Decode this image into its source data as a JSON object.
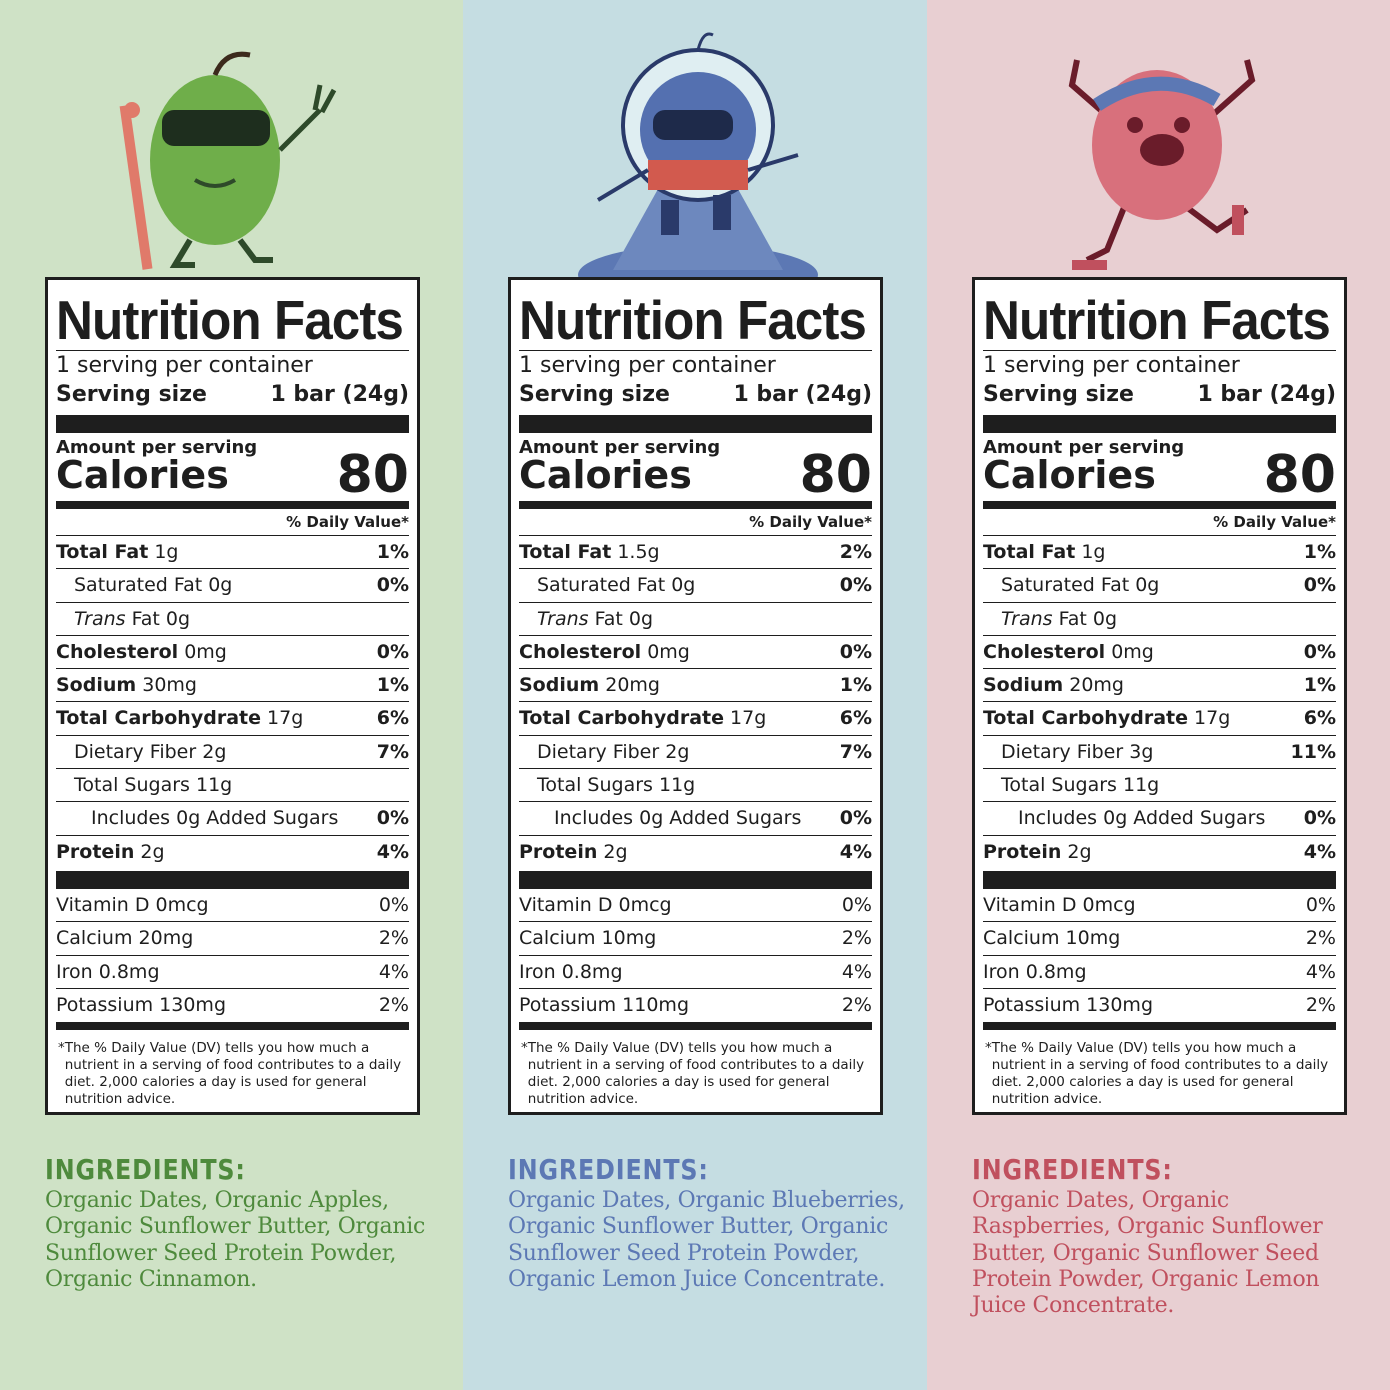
{
  "colors": {
    "green_bg": "#cfe2c6",
    "blue_bg": "#c5dde2",
    "pink_bg": "#e8cfd2",
    "green": "#4e8a3c",
    "blue": "#5c78b4",
    "pink": "#c0505e"
  },
  "panels": [
    {
      "mascot": "apple-character-icon",
      "bg": "#cfe2c6",
      "accent": "#4e8a3c",
      "title": "Nutrition Facts",
      "servings": "1 serving per container",
      "serving_size_label": "Serving size",
      "serving_size": "1 bar (24g)",
      "amount_label": "Amount per serving",
      "calories_label": "Calories",
      "calories": "80",
      "dv_label": "% Daily Value*",
      "rows": [
        {
          "name": "Total Fat",
          "amount": "1g",
          "pct": "1%"
        },
        {
          "name": "Saturated Fat",
          "amount": "0g",
          "pct": "0%"
        },
        {
          "name": "Trans",
          "name2": "Fat",
          "amount": "0g",
          "pct": ""
        },
        {
          "name": "Cholesterol",
          "amount": "0mg",
          "pct": "0%"
        },
        {
          "name": "Sodium",
          "amount": "30mg",
          "pct": "1%"
        },
        {
          "name": "Total Carbohydrate",
          "amount": "17g",
          "pct": "6%"
        },
        {
          "name": "Dietary Fiber",
          "amount": "2g",
          "pct": "7%"
        },
        {
          "name": "Total Sugars",
          "amount": "11g",
          "pct": ""
        },
        {
          "name": "Includes",
          "amount": "0g Added Sugars",
          "pct": "0%"
        },
        {
          "name": "Protein",
          "amount": "2g",
          "pct": "4%"
        }
      ],
      "vitamins": [
        {
          "name": "Vitamin D",
          "amount": "0mcg",
          "pct": "0%"
        },
        {
          "name": "Calcium",
          "amount": "20mg",
          "pct": "2%"
        },
        {
          "name": "Iron",
          "amount": "0.8mg",
          "pct": "4%"
        },
        {
          "name": "Potassium",
          "amount": "130mg",
          "pct": "2%"
        }
      ],
      "footnote_star": "*",
      "footnote": "The % Daily Value (DV) tells you how much a nutrient in a serving of food contributes to a daily diet. 2,000 calories a day is used for general nutrition advice.",
      "ingredients_heading": "INGREDIENTS:",
      "ingredients": "Organic Dates, Organic Apples, Organic Sunflower Butter, Organic Sunflower Seed Protein Powder, Organic Cinnamon."
    },
    {
      "mascot": "blueberry-astronaut-icon",
      "bg": "#c5dde2",
      "accent": "#5c78b4",
      "title": "Nutrition Facts",
      "servings": "1 serving per container",
      "serving_size_label": "Serving size",
      "serving_size": "1 bar (24g)",
      "amount_label": "Amount per serving",
      "calories_label": "Calories",
      "calories": "80",
      "dv_label": "% Daily Value*",
      "rows": [
        {
          "name": "Total Fat",
          "amount": "1.5g",
          "pct": "2%"
        },
        {
          "name": "Saturated Fat",
          "amount": "0g",
          "pct": "0%"
        },
        {
          "name": "Trans",
          "name2": "Fat",
          "amount": "0g",
          "pct": ""
        },
        {
          "name": "Cholesterol",
          "amount": "0mg",
          "pct": "0%"
        },
        {
          "name": "Sodium",
          "amount": "20mg",
          "pct": "1%"
        },
        {
          "name": "Total Carbohydrate",
          "amount": "17g",
          "pct": "6%"
        },
        {
          "name": "Dietary Fiber",
          "amount": "2g",
          "pct": "7%"
        },
        {
          "name": "Total Sugars",
          "amount": "11g",
          "pct": ""
        },
        {
          "name": "Includes",
          "amount": "0g Added Sugars",
          "pct": "0%"
        },
        {
          "name": "Protein",
          "amount": "2g",
          "pct": "4%"
        }
      ],
      "vitamins": [
        {
          "name": "Vitamin D",
          "amount": "0mcg",
          "pct": "0%"
        },
        {
          "name": "Calcium",
          "amount": "10mg",
          "pct": "2%"
        },
        {
          "name": "Iron",
          "amount": "0.8mg",
          "pct": "4%"
        },
        {
          "name": "Potassium",
          "amount": "110mg",
          "pct": "2%"
        }
      ],
      "footnote_star": "*",
      "footnote": "The % Daily Value (DV) tells you how much a nutrient in a serving of food contributes to a daily diet. 2,000 calories a day is used for general nutrition advice.",
      "ingredients_heading": "INGREDIENTS:",
      "ingredients": "Organic Dates, Organic Blueberries, Organic Sunflower Butter, Organic Sunflower Seed Protein Powder, Organic Lemon Juice Concentrate."
    },
    {
      "mascot": "raspberry-athlete-icon",
      "bg": "#e8cfd2",
      "accent": "#c0505e",
      "title": "Nutrition Facts",
      "servings": "1 serving per container",
      "serving_size_label": "Serving size",
      "serving_size": "1 bar (24g)",
      "amount_label": "Amount per serving",
      "calories_label": "Calories",
      "calories": "80",
      "dv_label": "% Daily Value*",
      "rows": [
        {
          "name": "Total Fat",
          "amount": "1g",
          "pct": "1%"
        },
        {
          "name": "Saturated Fat",
          "amount": "0g",
          "pct": "0%"
        },
        {
          "name": "Trans",
          "name2": "Fat",
          "amount": "0g",
          "pct": ""
        },
        {
          "name": "Cholesterol",
          "amount": "0mg",
          "pct": "0%"
        },
        {
          "name": "Sodium",
          "amount": "20mg",
          "pct": "1%"
        },
        {
          "name": "Total Carbohydrate",
          "amount": "17g",
          "pct": "6%"
        },
        {
          "name": "Dietary Fiber",
          "amount": "3g",
          "pct": "11%"
        },
        {
          "name": "Total Sugars",
          "amount": "11g",
          "pct": ""
        },
        {
          "name": "Includes",
          "amount": "0g Added Sugars",
          "pct": "0%"
        },
        {
          "name": "Protein",
          "amount": "2g",
          "pct": "4%"
        }
      ],
      "vitamins": [
        {
          "name": "Vitamin D",
          "amount": "0mcg",
          "pct": "0%"
        },
        {
          "name": "Calcium",
          "amount": "10mg",
          "pct": "2%"
        },
        {
          "name": "Iron",
          "amount": "0.8mg",
          "pct": "4%"
        },
        {
          "name": "Potassium",
          "amount": "130mg",
          "pct": "2%"
        }
      ],
      "footnote_star": "*",
      "footnote": "The % Daily Value (DV) tells you how much a nutrient in a serving of food contributes to a daily diet. 2,000 calories a day is used for general nutrition advice.",
      "ingredients_heading": "INGREDIENTS:",
      "ingredients": "Organic Dates, Organic Raspberries, Organic Sunflower Butter, Organic Sunflower Seed Protein Powder, Organic Lemon Juice Concentrate."
    }
  ]
}
